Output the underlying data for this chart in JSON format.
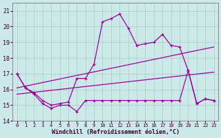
{
  "x": [
    0,
    1,
    2,
    3,
    4,
    5,
    6,
    7,
    8,
    9,
    10,
    11,
    12,
    13,
    14,
    15,
    16,
    17,
    18,
    19,
    20,
    21,
    22,
    23
  ],
  "line_top": [
    17.0,
    16.1,
    15.8,
    15.3,
    15.0,
    15.1,
    15.2,
    16.7,
    16.7,
    17.6,
    20.3,
    20.5,
    20.8,
    19.9,
    18.8,
    18.9,
    19.0,
    19.5,
    18.8,
    18.7,
    17.2,
    15.1,
    15.4,
    15.3
  ],
  "line_bot": [
    17.0,
    16.1,
    15.7,
    15.1,
    14.8,
    15.0,
    15.0,
    14.6,
    15.3,
    15.3,
    15.3,
    15.3,
    15.3,
    15.3,
    15.3,
    15.3,
    15.3,
    15.3,
    15.3,
    15.3,
    17.2,
    15.1,
    15.4,
    15.3
  ],
  "trend1_x": [
    0,
    23
  ],
  "trend1_y": [
    16.1,
    18.7
  ],
  "trend2_x": [
    0,
    23
  ],
  "trend2_y": [
    15.7,
    17.1
  ],
  "line_color": "#990099",
  "bg_color": "#cce8e8",
  "grid_color": "#aacccc",
  "xlabel": "Windchill (Refroidissement éolien,°C)",
  "ylim": [
    14,
    21.5
  ],
  "xlim": [
    -0.5,
    23.5
  ],
  "yticks": [
    14,
    15,
    16,
    17,
    18,
    19,
    20,
    21
  ],
  "xticks": [
    0,
    1,
    2,
    3,
    4,
    5,
    6,
    7,
    8,
    9,
    10,
    11,
    12,
    13,
    14,
    15,
    16,
    17,
    18,
    19,
    20,
    21,
    22,
    23
  ]
}
